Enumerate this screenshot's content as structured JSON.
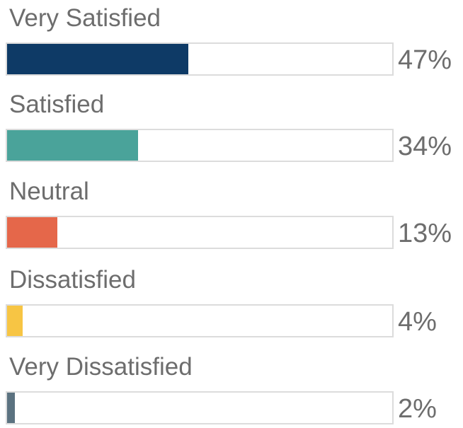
{
  "chart_data": {
    "type": "bar",
    "orientation": "horizontal",
    "title": "",
    "xlabel": "",
    "ylabel": "",
    "xlim": [
      0,
      100
    ],
    "grid": false,
    "categories": [
      "Very Satisfied",
      "Satisfied",
      "Neutral",
      "Dissatisfied",
      "Very Dissatisfied"
    ],
    "values": [
      47,
      34,
      13,
      4,
      2
    ],
    "value_labels": [
      "47%",
      "34%",
      "13%",
      "4%",
      "2%"
    ],
    "colors": [
      "#0e3a66",
      "#4aa39a",
      "#e5674a",
      "#f7c544",
      "#5b7280"
    ]
  }
}
